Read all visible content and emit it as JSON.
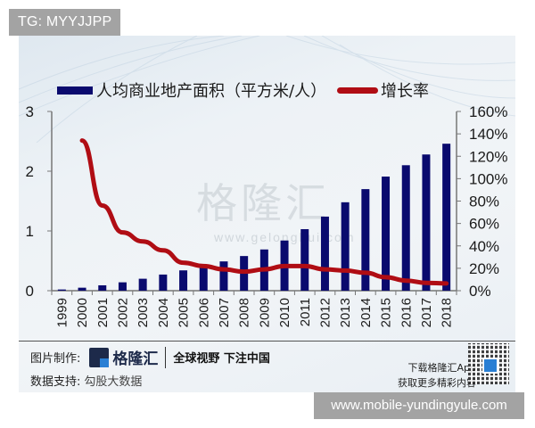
{
  "overlay": {
    "top_badge": "TG: MYYJJPP",
    "bottom_badge": "www.mobile-yundingyule.com"
  },
  "legend": {
    "bar_label": "人均商业地产面积（平方米/人）",
    "line_label": "增长率"
  },
  "watermark": {
    "text": "格隆汇",
    "url": "www.gelonghui.com"
  },
  "footer": {
    "made_by_label": "图片制作:",
    "logo_text": "格隆汇",
    "slogan": "全球视野 下注中国",
    "data_label": "数据支持:",
    "data_value": "勾股大数据",
    "app_line1": "下载格隆汇App",
    "app_line2": "获取更多精彩内容"
  },
  "colors": {
    "bar": "#0a0a6e",
    "line": "#b00d14",
    "axis": "#777777"
  },
  "chart_data": {
    "type": "bar+line",
    "title": "",
    "categories": [
      "1999",
      "2000",
      "2001",
      "2002",
      "2003",
      "2004",
      "2005",
      "2006",
      "2007",
      "2008",
      "2009",
      "2010",
      "2011",
      "2012",
      "2013",
      "2014",
      "2015",
      "2016",
      "2017",
      "2018"
    ],
    "series": [
      {
        "name": "人均商业地产面积（平方米/人）",
        "type": "bar",
        "axis": "left",
        "values": [
          0.02,
          0.05,
          0.09,
          0.14,
          0.2,
          0.27,
          0.34,
          0.43,
          0.49,
          0.58,
          0.69,
          0.84,
          1.03,
          1.24,
          1.48,
          1.7,
          1.91,
          2.1,
          2.28,
          2.46
        ]
      },
      {
        "name": "增长率",
        "type": "line",
        "axis": "right",
        "values": [
          null,
          134,
          76,
          52,
          44,
          36,
          25,
          22,
          19,
          17,
          19,
          22,
          22,
          19,
          18,
          16,
          12,
          9,
          7,
          6.5
        ]
      }
    ],
    "left_axis": {
      "ylim": [
        0,
        3
      ],
      "ticks": [
        "0",
        "1",
        "2",
        "3"
      ]
    },
    "right_axis": {
      "ylim": [
        0,
        160
      ],
      "ticks": [
        "0%",
        "20%",
        "40%",
        "60%",
        "80%",
        "100%",
        "120%",
        "140%",
        "160%"
      ]
    },
    "xlabel": "",
    "ylabel": "",
    "legend_position": "top",
    "grid": false
  }
}
